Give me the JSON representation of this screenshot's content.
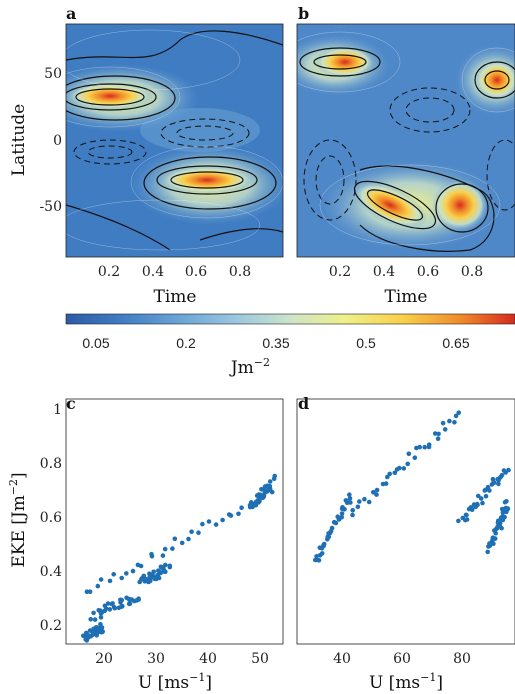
{
  "colors": {
    "scatter": "#1f6fb4",
    "colormap": [
      "#2e5aa6",
      "#3f7cc2",
      "#6aa3d6",
      "#9cc7e0",
      "#cde4c9",
      "#eef08a",
      "#f9d04a",
      "#f08a2a",
      "#d62a1e"
    ]
  },
  "chart_data": [
    {
      "panel": "a",
      "type": "heatmap",
      "xlabel": "Time",
      "ylabel": "Latitude",
      "xticks": [
        "0.2",
        "0.4",
        "0.6",
        "0.8"
      ],
      "yticks": [
        "50",
        "0",
        "-50"
      ],
      "xlim": [
        0,
        1
      ],
      "ylim": [
        -90,
        90
      ],
      "peaks": [
        {
          "t": 0.22,
          "lat": 34,
          "value": 0.72
        },
        {
          "t": 0.65,
          "lat": -35,
          "value": 0.72
        }
      ]
    },
    {
      "panel": "b",
      "type": "heatmap",
      "xlabel": "Time",
      "xticks": [
        "0.2",
        "0.4",
        "0.6",
        "0.8"
      ],
      "xlim": [
        0,
        1
      ],
      "ylim": [
        -90,
        90
      ],
      "peaks": [
        {
          "t": 0.25,
          "lat": 62,
          "value": 0.68
        },
        {
          "t": 0.9,
          "lat": 43,
          "value": 0.7
        },
        {
          "t": 0.38,
          "lat": -46,
          "value": 0.72
        },
        {
          "t": 0.72,
          "lat": -43,
          "value": 0.72
        }
      ]
    },
    {
      "panel": "colorbar",
      "type": "heatmap",
      "label": "Jm",
      "label_exponent": "−2",
      "ticks": [
        "0.05",
        "0.2",
        "0.35",
        "0.5",
        "0.65"
      ],
      "range": [
        0,
        0.75
      ]
    },
    {
      "panel": "c",
      "type": "scatter",
      "xlabel": "U [ms",
      "xlabel_exponent": "−1",
      "xlabel_tail": "]",
      "ylabel": "EKE [Jm",
      "ylabel_exponent": "−2",
      "ylabel_tail": "]",
      "xticks": [
        "20",
        "30",
        "40",
        "50"
      ],
      "yticks": [
        "1",
        "0.8",
        "0.6",
        "0.4",
        "0.2"
      ],
      "xlim": [
        12.5,
        54
      ],
      "ylim": [
        0.1,
        1.0
      ],
      "clusters": [
        {
          "x_from": 16.5,
          "x_to": 52,
          "y_from": 0.29,
          "y_to": 0.66
        },
        {
          "x_from": 17.5,
          "x_to": 26.5,
          "y_from": 0.2,
          "y_to": 0.28
        },
        {
          "x_from": 16.3,
          "x_to": 19.5,
          "y_from": 0.12,
          "y_to": 0.16
        },
        {
          "x_from": 27,
          "x_to": 32,
          "y_from": 0.33,
          "y_to": 0.38
        },
        {
          "x_from": 48,
          "x_to": 52,
          "y_from": 0.6,
          "y_to": 0.7
        }
      ]
    },
    {
      "panel": "d",
      "type": "scatter",
      "xlabel": "U [ms",
      "xlabel_exponent": "−1",
      "xlabel_tail": "]",
      "xticks": [
        "40",
        "60",
        "80"
      ],
      "xlim": [
        30,
        90
      ],
      "ylim": [
        0.1,
        1.0
      ],
      "clusters": [
        {
          "x_from": 35,
          "x_to": 45,
          "y_from": 0.4,
          "y_to": 0.65
        },
        {
          "x_from": 45,
          "x_to": 75,
          "y_from": 0.58,
          "y_to": 0.95
        },
        {
          "x_from": 75,
          "x_to": 88,
          "y_from": 0.55,
          "y_to": 0.75
        },
        {
          "x_from": 83,
          "x_to": 88,
          "y_from": 0.45,
          "y_to": 0.62
        }
      ]
    }
  ]
}
